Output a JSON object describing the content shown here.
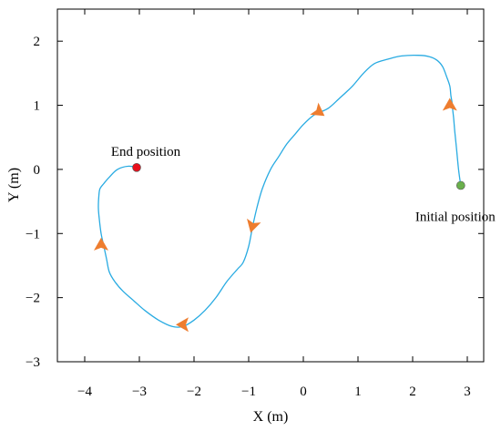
{
  "chart_data": {
    "type": "line",
    "xlabel": "X (m)",
    "ylabel": "Y (m)",
    "xlim": [
      -4.5,
      3.3
    ],
    "ylim": [
      -3,
      2.5
    ],
    "xticks": [
      -4,
      -3,
      -2,
      -1,
      0,
      1,
      2,
      3
    ],
    "yticks": [
      -3,
      -2,
      -1,
      0,
      1,
      2
    ],
    "xtick_labels": [
      "−4",
      "−3",
      "−2",
      "−1",
      "0",
      "1",
      "2",
      "3"
    ],
    "ytick_labels": [
      "−3",
      "−2",
      "−1",
      "0",
      "1",
      "2"
    ],
    "grid": false,
    "series": [
      {
        "color": "#29abe2",
        "x": [
          2.88,
          2.84,
          2.8,
          2.77,
          2.75,
          2.73,
          2.72,
          2.7,
          2.68,
          2.62,
          2.55,
          2.45,
          2.3,
          2.1,
          1.8,
          1.55,
          1.3,
          1.1,
          0.9,
          0.65,
          0.45,
          0.2,
          0.0,
          -0.15,
          -0.3,
          -0.45,
          -0.6,
          -0.75,
          -0.85,
          -0.93,
          -1.0,
          -1.1,
          -1.2,
          -1.4,
          -1.6,
          -1.8,
          -2.0,
          -2.2,
          -2.4,
          -2.65,
          -2.9,
          -3.1,
          -3.3,
          -3.45,
          -3.55,
          -3.6,
          -3.65,
          -3.7,
          -3.73,
          -3.75,
          -3.74,
          -3.72,
          -3.65,
          -3.55,
          -3.4,
          -3.2,
          -3.05
        ],
        "y": [
          -0.25,
          0.0,
          0.35,
          0.6,
          0.8,
          0.95,
          1.05,
          1.15,
          1.3,
          1.45,
          1.6,
          1.7,
          1.76,
          1.78,
          1.77,
          1.72,
          1.65,
          1.5,
          1.3,
          1.1,
          0.95,
          0.85,
          0.7,
          0.55,
          0.4,
          0.2,
          0.0,
          -0.3,
          -0.6,
          -0.9,
          -1.2,
          -1.45,
          -1.55,
          -1.75,
          -2.0,
          -2.2,
          -2.35,
          -2.45,
          -2.45,
          -2.35,
          -2.2,
          -2.05,
          -1.9,
          -1.75,
          -1.6,
          -1.4,
          -1.2,
          -1.0,
          -0.8,
          -0.6,
          -0.4,
          -0.3,
          -0.22,
          -0.12,
          0.0,
          0.05,
          0.03
        ]
      }
    ],
    "markers": [
      {
        "name": "start",
        "x": 2.88,
        "y": -0.25,
        "color": "#6ab04c",
        "label": "Initial position"
      },
      {
        "name": "end",
        "x": -3.05,
        "y": 0.03,
        "color": "#e8101c",
        "label": "End position"
      }
    ],
    "arrows": [
      {
        "x": 2.68,
        "y": 1.0,
        "angle": -90
      },
      {
        "x": 0.28,
        "y": 0.9,
        "angle": 35
      },
      {
        "x": -0.93,
        "y": -0.88,
        "angle": 105
      },
      {
        "x": -2.2,
        "y": -2.42,
        "angle": 180
      },
      {
        "x": -3.7,
        "y": -1.18,
        "angle": -90
      }
    ],
    "arrow_color": "#ee7d2f"
  }
}
